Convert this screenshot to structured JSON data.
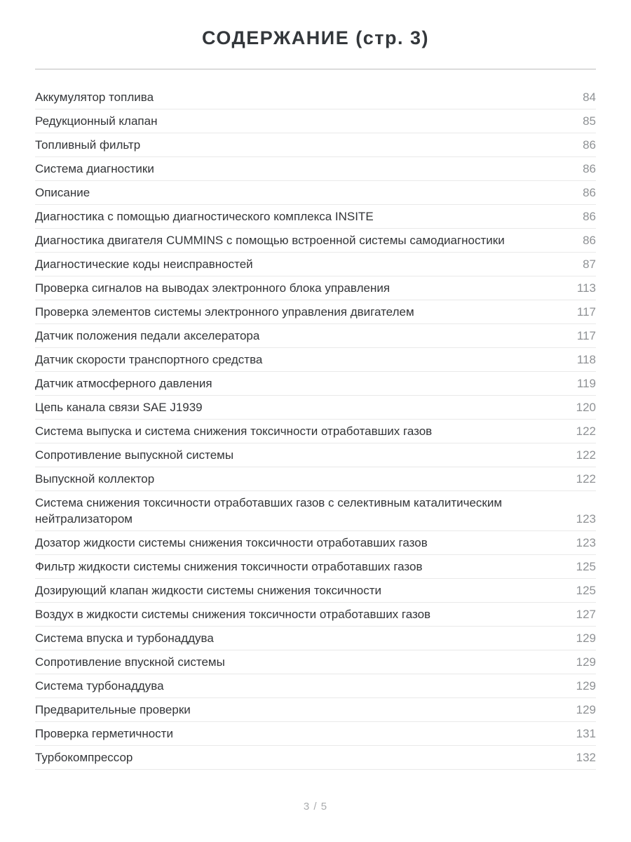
{
  "page": {
    "title": "СОДЕРЖАНИЕ (стр. 3)",
    "footer": "3 / 5"
  },
  "toc": {
    "entries": [
      {
        "label": "Аккумулятор топлива",
        "page": "84"
      },
      {
        "label": "Редукционный клапан",
        "page": "85"
      },
      {
        "label": "Топливный фильтр",
        "page": "86"
      },
      {
        "label": "Система диагностики",
        "page": "86"
      },
      {
        "label": "Описание",
        "page": "86"
      },
      {
        "label": "Диагностика с помощью диагностического комплекса INSITE",
        "page": "86"
      },
      {
        "label": "Диагностика двигателя CUMMINS с помощью встроенной системы самодиагностики",
        "page": "86"
      },
      {
        "label": "Диагностические коды неисправностей",
        "page": "87"
      },
      {
        "label": "Проверка сигналов на выводах электронного блока управления",
        "page": "113"
      },
      {
        "label": "Проверка элементов системы электронного управления двигателем",
        "page": "117"
      },
      {
        "label": "Датчик положения педали акселератора",
        "page": "117"
      },
      {
        "label": "Датчик скорости транспортного средства",
        "page": "118"
      },
      {
        "label": "Датчик атмосферного давления",
        "page": "119"
      },
      {
        "label": "Цепь канала связи SAE J1939",
        "page": "120"
      },
      {
        "label": "Система выпуска и система снижения токсичности отработавших газов",
        "page": "122"
      },
      {
        "label": "Сопротивление выпускной системы",
        "page": "122"
      },
      {
        "label": "Выпускной коллектор",
        "page": "122"
      },
      {
        "label": "Система снижения токсичности отработавших газов с селективным каталитическим нейтрализатором",
        "page": "123"
      },
      {
        "label": "Дозатор жидкости системы снижения токсичности отработавших газов",
        "page": "123"
      },
      {
        "label": "Фильтр жидкости системы снижения токсичности отработавших газов",
        "page": "125"
      },
      {
        "label": "Дозирующий клапан жидкости системы снижения токсичности",
        "page": "125"
      },
      {
        "label": "Воздух в жидкости системы снижения токсичности отработавших газов",
        "page": "127"
      },
      {
        "label": "Система впуска и турбонаддува",
        "page": "129"
      },
      {
        "label": "Сопротивление впускной системы",
        "page": "129"
      },
      {
        "label": "Система турбонаддува",
        "page": "129"
      },
      {
        "label": "Предварительные проверки",
        "page": "129"
      },
      {
        "label": "Проверка герметичности",
        "page": "131"
      },
      {
        "label": "Турбокомпрессор",
        "page": "132"
      }
    ]
  }
}
